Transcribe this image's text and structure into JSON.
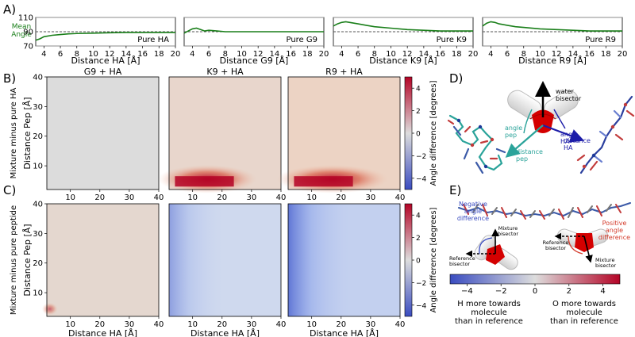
{
  "figure": {
    "labels": {
      "A": "A)",
      "B": "B)",
      "C": "C)",
      "D": "D)",
      "E": "E)"
    }
  },
  "colors": {
    "line": "#1a7f1a",
    "ref": "#555555",
    "cold": "#3a4cc0",
    "neutral": "#dddddd",
    "hot": "#b40426",
    "water_red": "#d40000",
    "white_h": "#f2f2f2",
    "teal": "#2aa39a",
    "navy": "#1c1ca8",
    "neg": "#3a4cc0",
    "pos": "#d43c2c"
  },
  "chart_data": [
    {
      "type": "line",
      "panel": "A",
      "ylabel": "Mean\nAngle",
      "ylim": [
        70,
        110
      ],
      "yticks": [
        70,
        90,
        110
      ],
      "xlim": [
        3,
        20
      ],
      "xticks": [
        4,
        6,
        8,
        10,
        12,
        14,
        16,
        18,
        20
      ],
      "reference_value": 90,
      "subplots": [
        {
          "title": "Pure HA",
          "xlabel": "Distance HA [Å]",
          "x": [
            3.0,
            3.5,
            4.0,
            5.0,
            6.0,
            7.0,
            8.0,
            10.0,
            12.0,
            14.0,
            16.0,
            18.0,
            20.0
          ],
          "y": [
            78,
            80,
            83,
            85,
            86,
            87,
            87.5,
            88,
            88.5,
            89,
            89,
            89,
            89
          ]
        },
        {
          "title": "Pure G9",
          "xlabel": "Distance G9 [Å]",
          "x": [
            3.0,
            3.5,
            4.0,
            4.5,
            5.0,
            5.5,
            6.0,
            7.0,
            8.0,
            10.0,
            12.0,
            14.0,
            16.0,
            18.0,
            20.0
          ],
          "y": [
            88,
            91,
            94,
            95,
            93,
            91,
            92,
            91,
            90,
            90,
            90,
            90,
            90,
            90,
            90
          ]
        },
        {
          "title": "Pure K9",
          "xlabel": "Distance K9 [Å]",
          "x": [
            3.0,
            3.5,
            4.0,
            4.5,
            5.0,
            6.0,
            7.0,
            8.0,
            10.0,
            12.0,
            14.0,
            16.0,
            18.0,
            20.0
          ],
          "y": [
            98,
            101,
            103,
            104,
            103,
            101,
            99,
            97,
            95,
            93,
            92,
            91,
            91,
            91
          ]
        },
        {
          "title": "Pure R9",
          "xlabel": "Distance R9 [Å]",
          "x": [
            3.0,
            3.5,
            4.0,
            4.5,
            5.0,
            6.0,
            7.0,
            8.0,
            10.0,
            12.0,
            14.0,
            16.0,
            18.0,
            20.0
          ],
          "y": [
            98,
            102,
            104,
            103,
            101,
            99,
            97,
            96,
            94,
            93,
            92,
            91,
            91,
            91
          ]
        }
      ]
    },
    {
      "type": "heatmap",
      "panel": "B",
      "row_label": "Mixture minus pure HA",
      "ylabel": "Distance Pep  [Å]",
      "xlim": [
        2,
        40
      ],
      "ylim": [
        2,
        40
      ],
      "xticks": [
        10,
        20,
        30,
        40
      ],
      "yticks": [
        10,
        20,
        30,
        40
      ],
      "columns": [
        "G9 + HA",
        "K9 + HA",
        "R9 + HA"
      ],
      "colorbar": {
        "label": "Angle difference [degrees]",
        "range": [
          -5,
          5
        ],
        "ticks": [
          -4,
          -2,
          0,
          2,
          4
        ]
      },
      "descriptions": [
        "near-zero everywhere",
        "strong positive band at Pep < 8 Å, HA 8–22 Å",
        "strong positive band at Pep < 8 Å, HA 8–25 Å"
      ]
    },
    {
      "type": "heatmap",
      "panel": "C",
      "row_label": "Mixture minus pure peptide",
      "ylabel": "Distance Pep  [Å]",
      "xlabel": "Distance HA  [Å]",
      "xlim": [
        2,
        40
      ],
      "ylim": [
        2,
        40
      ],
      "xticks": [
        10,
        20,
        30,
        40
      ],
      "yticks": [
        10,
        20,
        30,
        40
      ],
      "columns": [
        "G9 + HA",
        "K9 + HA",
        "R9 + HA"
      ],
      "colorbar": {
        "label": "Angle difference [degrees]",
        "range": [
          -5,
          5
        ],
        "ticks": [
          -4,
          -2,
          0,
          2,
          4
        ]
      },
      "descriptions": [
        "small positive spot near origin",
        "weak negative at HA < 8 Å",
        "negative band at HA < 8 Å"
      ]
    }
  ],
  "panelD": {
    "water_bisector": "water\nbisector",
    "angle_HA": "angle\nHA",
    "angle_pep": "angle\npep",
    "distance_pep": "distance\npep",
    "distance_HA": "distance\nHA"
  },
  "panelE": {
    "negative": "Negative\nangle\ndifference",
    "positive": "Positive\nangle\ndifference",
    "mixture_bisector": "Mixture\nbisector",
    "reference_bisector": "Reference\nbisector",
    "colorbar_ticks": [
      "−4",
      "−2",
      "0",
      "2",
      "4"
    ],
    "left_caption": "H more towards\nmolecule\nthan in reference",
    "right_caption": "O more towards\nmolecule\nthan in reference"
  }
}
